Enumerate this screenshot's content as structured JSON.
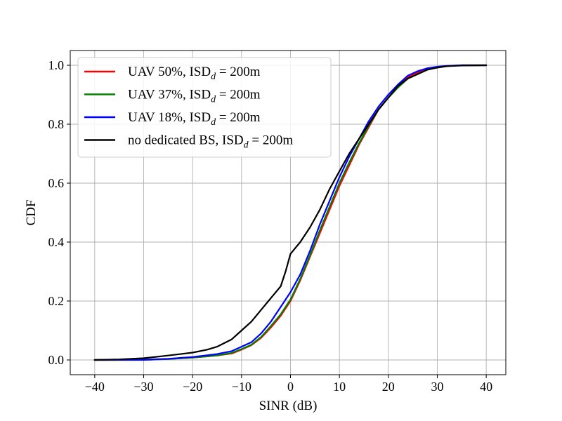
{
  "chart_data": {
    "type": "line",
    "xlabel": "SINR (dB)",
    "ylabel": "CDF",
    "xlim": [
      -45,
      44
    ],
    "ylim": [
      -0.05,
      1.05
    ],
    "xticks": [
      -40,
      -30,
      -20,
      -10,
      0,
      10,
      20,
      30,
      40
    ],
    "xtick_labels": [
      "−40",
      "−30",
      "−20",
      "−10",
      "0",
      "10",
      "20",
      "30",
      "40"
    ],
    "yticks": [
      0.0,
      0.2,
      0.4,
      0.6,
      0.8,
      1.0
    ],
    "ytick_labels": [
      "0.0",
      "0.2",
      "0.4",
      "0.6",
      "0.8",
      "1.0"
    ],
    "grid": true,
    "legend_position": "top-left",
    "series": [
      {
        "name": "UAV 50%, ISD",
        "name_subscript": "d",
        "name_suffix": " = 200m",
        "color": "#ff0000",
        "x": [
          -40,
          -30,
          -25,
          -20,
          -15,
          -12,
          -10,
          -8,
          -6,
          -4,
          -2,
          0,
          2,
          4,
          6,
          8,
          10,
          12,
          14,
          16,
          18,
          20,
          22,
          24,
          26,
          28,
          30,
          32,
          35,
          40
        ],
        "y": [
          0.0,
          0.0,
          0.003,
          0.008,
          0.015,
          0.022,
          0.035,
          0.05,
          0.075,
          0.11,
          0.15,
          0.2,
          0.27,
          0.35,
          0.43,
          0.51,
          0.59,
          0.66,
          0.73,
          0.79,
          0.85,
          0.89,
          0.93,
          0.96,
          0.975,
          0.985,
          0.993,
          0.997,
          1.0,
          1.0
        ]
      },
      {
        "name": "UAV 37%, ISD",
        "name_subscript": "d",
        "name_suffix": " = 200m",
        "color": "#008000",
        "x": [
          -40,
          -30,
          -25,
          -20,
          -15,
          -12,
          -10,
          -8,
          -6,
          -4,
          -2,
          0,
          2,
          4,
          6,
          8,
          10,
          12,
          14,
          16,
          18,
          20,
          22,
          24,
          26,
          28,
          30,
          32,
          35,
          40
        ],
        "y": [
          0.0,
          0.0,
          0.003,
          0.008,
          0.015,
          0.024,
          0.037,
          0.052,
          0.078,
          0.115,
          0.155,
          0.205,
          0.275,
          0.355,
          0.44,
          0.52,
          0.6,
          0.67,
          0.735,
          0.795,
          0.85,
          0.89,
          0.925,
          0.955,
          0.97,
          0.985,
          0.993,
          0.997,
          1.0,
          1.0
        ]
      },
      {
        "name": "UAV 18%, ISD",
        "name_subscript": "d",
        "name_suffix": " = 200m",
        "color": "#0000ff",
        "x": [
          -40,
          -30,
          -25,
          -20,
          -15,
          -12,
          -10,
          -8,
          -6,
          -4,
          -2,
          0,
          2,
          4,
          6,
          8,
          10,
          12,
          14,
          16,
          18,
          20,
          22,
          24,
          26,
          28,
          30,
          32,
          35,
          40
        ],
        "y": [
          0.0,
          0.001,
          0.004,
          0.01,
          0.02,
          0.03,
          0.045,
          0.06,
          0.09,
          0.13,
          0.18,
          0.23,
          0.29,
          0.37,
          0.46,
          0.54,
          0.62,
          0.69,
          0.75,
          0.81,
          0.86,
          0.9,
          0.935,
          0.965,
          0.98,
          0.99,
          0.995,
          0.998,
          1.0,
          1.0
        ]
      },
      {
        "name": "no dedicated BS, ISD",
        "name_subscript": "d",
        "name_suffix": " = 200m",
        "color": "#000000",
        "x": [
          -40,
          -35,
          -30,
          -25,
          -20,
          -17,
          -15,
          -12,
          -10,
          -8,
          -6,
          -4,
          -2,
          -1,
          0,
          2,
          4,
          6,
          8,
          10,
          12,
          14,
          16,
          18,
          20,
          22,
          24,
          26,
          28,
          30,
          32,
          35,
          40
        ],
        "y": [
          0.0,
          0.002,
          0.006,
          0.015,
          0.025,
          0.035,
          0.045,
          0.07,
          0.1,
          0.13,
          0.17,
          0.21,
          0.25,
          0.3,
          0.36,
          0.4,
          0.45,
          0.51,
          0.58,
          0.64,
          0.7,
          0.75,
          0.8,
          0.85,
          0.89,
          0.93,
          0.955,
          0.97,
          0.985,
          0.992,
          0.997,
          0.999,
          1.0
        ]
      }
    ]
  }
}
